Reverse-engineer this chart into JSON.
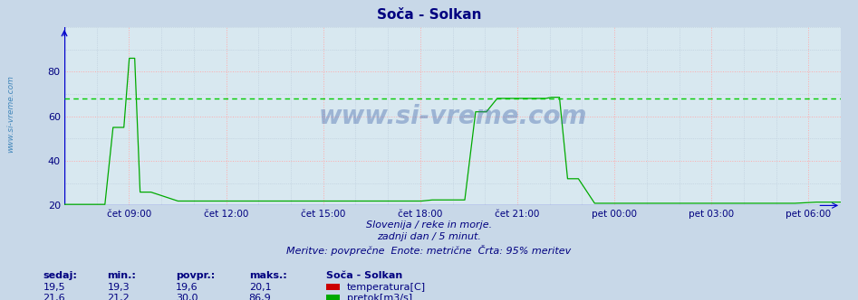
{
  "title": "Soča - Solkan",
  "title_color": "#000080",
  "bg_color": "#c8d8e8",
  "plot_bg_color": "#d8e8f0",
  "grid_color_major": "#ffaaaa",
  "grid_color_minor": "#b8c8d8",
  "x_labels": [
    "čet 09:00",
    "čet 12:00",
    "čet 15:00",
    "čet 18:00",
    "čet 21:00",
    "pet 00:00",
    "pet 03:00",
    "pet 06:00"
  ],
  "ylim": [
    20,
    100
  ],
  "yticks": [
    20,
    40,
    60,
    80
  ],
  "tick_color": "#000080",
  "temp_color": "#cc0000",
  "flow_color": "#00aa00",
  "level_color": "#0000cc",
  "pct95_color": "#00cc00",
  "pct95_value": 68.0,
  "watermark_text": "www.si-vreme.com",
  "watermark_color": "#4466aa",
  "watermark_alpha": 0.4,
  "footnote1": "Slovenija / reke in morje.",
  "footnote2": "zadnji dan / 5 minut.",
  "footnote3": "Meritve: povprečne  Enote: metrične  Črta: 95% meritev",
  "footnote_color": "#000080",
  "legend_title": "Soča - Solkan",
  "legend_temp_label": "temperatura[C]",
  "legend_flow_label": "pretok[m3/s]",
  "table_headers": [
    "sedaj:",
    "min.:",
    "povpr.:",
    "maks.:"
  ],
  "table_temp": [
    "19,5",
    "19,3",
    "19,6",
    "20,1"
  ],
  "table_flow": [
    "21,6",
    "21,2",
    "30,0",
    "86,9"
  ],
  "table_color": "#000080",
  "n_points": 288,
  "sivreme_label": "www.si-vreme.com"
}
